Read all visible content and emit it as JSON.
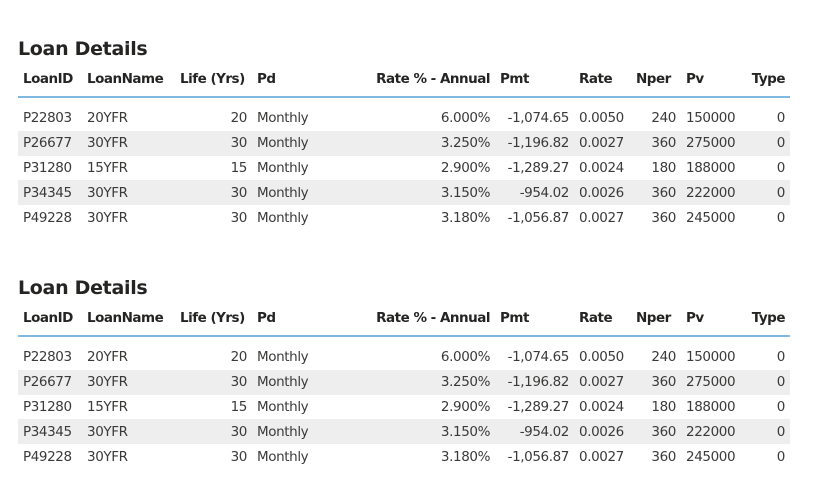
{
  "tables": [
    {
      "title": "Loan Details",
      "columns": [
        "LoanID",
        "LoanName",
        "Life (Yrs)",
        "Pd",
        "Rate % - Annual",
        "Pmt",
        "Rate",
        "Nper",
        "Pv",
        "Type"
      ],
      "rows": [
        [
          "P22803",
          "20YFR",
          "20",
          "Monthly",
          "6.000%",
          "-1,074.65",
          "0.0050",
          "240",
          "150000",
          "0"
        ],
        [
          "P26677",
          "30YFR",
          "30",
          "Monthly",
          "3.250%",
          "-1,196.82",
          "0.0027",
          "360",
          "275000",
          "0"
        ],
        [
          "P31280",
          "15YFR",
          "15",
          "Monthly",
          "2.900%",
          "-1,289.27",
          "0.0024",
          "180",
          "188000",
          "0"
        ],
        [
          "P34345",
          "30YFR",
          "30",
          "Monthly",
          "3.150%",
          "-954.02",
          "0.0026",
          "360",
          "222000",
          "0"
        ],
        [
          "P49228",
          "30YFR",
          "30",
          "Monthly",
          "3.180%",
          "-1,056.87",
          "0.0027",
          "360",
          "245000",
          "0"
        ]
      ]
    },
    {
      "title": "Loan Details",
      "columns": [
        "LoanID",
        "LoanName",
        "Life (Yrs)",
        "Pd",
        "Rate % - Annual",
        "Pmt",
        "Rate",
        "Nper",
        "Pv",
        "Type"
      ],
      "rows": [
        [
          "P22803",
          "20YFR",
          "20",
          "Monthly",
          "6.000%",
          "-1,074.65",
          "0.0050",
          "240",
          "150000",
          "0"
        ],
        [
          "P26677",
          "30YFR",
          "30",
          "Monthly",
          "3.250%",
          "-1,196.82",
          "0.0027",
          "360",
          "275000",
          "0"
        ],
        [
          "P31280",
          "15YFR",
          "15",
          "Monthly",
          "2.900%",
          "-1,289.27",
          "0.0024",
          "180",
          "188000",
          "0"
        ],
        [
          "P34345",
          "30YFR",
          "30",
          "Monthly",
          "3.150%",
          "-954.02",
          "0.0026",
          "360",
          "222000",
          "0"
        ],
        [
          "P49228",
          "30YFR",
          "30",
          "Monthly",
          "3.180%",
          "-1,056.87",
          "0.0027",
          "360",
          "245000",
          "0"
        ]
      ]
    }
  ]
}
